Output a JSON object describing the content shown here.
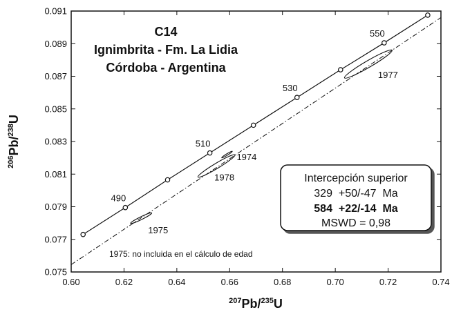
{
  "chart_data": {
    "type": "scatter",
    "xlim": [
      0.6,
      0.74
    ],
    "ylim": [
      0.075,
      0.091
    ],
    "x_ticks": [
      "0.60",
      "0.62",
      "0.64",
      "0.66",
      "0.68",
      "0.70",
      "0.72",
      "0.74"
    ],
    "y_ticks": [
      "0.075",
      "0.077",
      "0.079",
      "0.081",
      "0.083",
      "0.085",
      "0.087",
      "0.089",
      "0.091"
    ],
    "xlabel": {
      "sup1": "207",
      "base1": "Pb/",
      "sup2": "235",
      "base2": "U"
    },
    "ylabel": {
      "sup1": "206",
      "base1": "Pb/",
      "sup2": "238",
      "base2": "U"
    },
    "title_lines": [
      "C14",
      "Ignimbrita - Fm. La Lidia",
      "Córdoba - Argentina"
    ],
    "concordia_points": [
      {
        "x": 0.6045,
        "y": 0.0773,
        "label": ""
      },
      {
        "x": 0.6205,
        "y": 0.07895,
        "label": "490"
      },
      {
        "x": 0.6365,
        "y": 0.08065,
        "label": ""
      },
      {
        "x": 0.6525,
        "y": 0.0823,
        "label": "510"
      },
      {
        "x": 0.669,
        "y": 0.084,
        "label": ""
      },
      {
        "x": 0.6855,
        "y": 0.0857,
        "label": "530"
      },
      {
        "x": 0.702,
        "y": 0.0874,
        "label": ""
      },
      {
        "x": 0.7185,
        "y": 0.08905,
        "label": "550"
      },
      {
        "x": 0.735,
        "y": 0.09075,
        "label": ""
      }
    ],
    "discordia_line": {
      "x1": 0.6,
      "y1": 0.07545,
      "x2": 0.74,
      "y2": 0.0906
    },
    "error_ellipses": [
      {
        "label": "1975",
        "cx": 0.6265,
        "cy": 0.0783,
        "half_x": 0.004,
        "half_y": 0.00032
      },
      {
        "label": "1978",
        "cx": 0.655,
        "cy": 0.0815,
        "half_x": 0.007,
        "half_y": 0.00068
      },
      {
        "label": "1974",
        "cx": 0.659,
        "cy": 0.0822,
        "half_x": 0.002,
        "half_y": 0.0002
      },
      {
        "label": "1977",
        "cx": 0.7125,
        "cy": 0.08775,
        "half_x": 0.009,
        "half_y": 0.00085
      }
    ],
    "note": "1975: no incluida en el cálculo de edad"
  },
  "inset": {
    "line1": "Intercepción superior",
    "line2": "329  +50/-47  Ma",
    "line3": "584  +22/-14  Ma",
    "line4": "MSWD = 0,98"
  }
}
